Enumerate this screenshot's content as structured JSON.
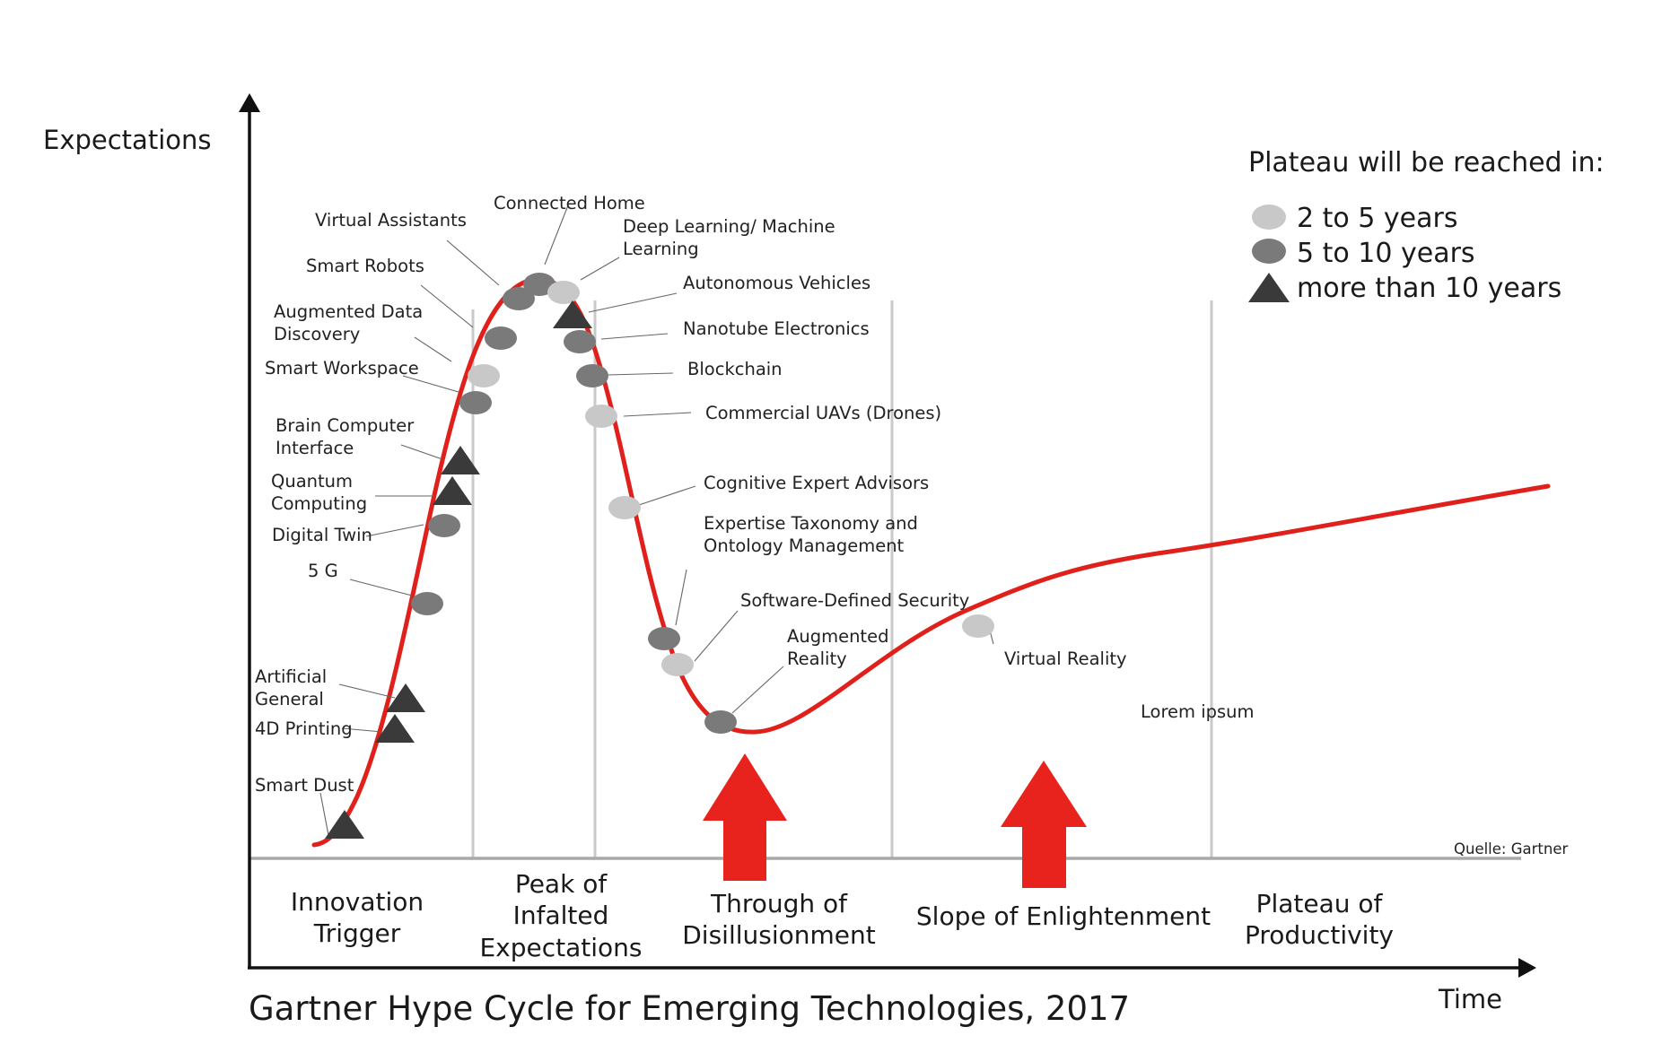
{
  "axis": {
    "y_label": "Expectations",
    "x_label": "Time"
  },
  "title": "Gartner Hype Cycle for Emerging Technologies, 2017",
  "source": "Quelle: Gartner",
  "legend": {
    "title": "Plateau will be reached in:",
    "items": [
      {
        "marker": "circle-light",
        "color": "#c8c8c8",
        "label": "2 to 5 years"
      },
      {
        "marker": "circle-dark",
        "color": "#7a7a7a",
        "label": "5 to 10 years"
      },
      {
        "marker": "triangle",
        "color": "#3a3a3a",
        "label": "more than 10 years"
      }
    ]
  },
  "phases": [
    {
      "lines": [
        "Innovation",
        "Trigger"
      ]
    },
    {
      "lines": [
        "Peak of",
        "Infalted",
        "Expectations"
      ]
    },
    {
      "lines": [
        "Through of",
        "Disillusionment"
      ]
    },
    {
      "lines": [
        "Slope of Enlightenment"
      ]
    },
    {
      "lines": [
        "Plateau of",
        "Productivity"
      ]
    }
  ],
  "technologies": {
    "virtual_assistants": "Virtual Assistants",
    "connected_home": "Connected Home",
    "deep_learning_1": "Deep Learning/ Machine",
    "deep_learning_2": "Learning",
    "smart_robots": "Smart Robots",
    "autonomous_vehicles": "Autonomous Vehicles",
    "augmented_data_1": "Augmented Data",
    "augmented_data_2": "Discovery",
    "nanotube": "Nanotube Electronics",
    "smart_workspace": "Smart Workspace",
    "blockchain": "Blockchain",
    "commercial_uavs": "Commercial UAVs (Drones)",
    "bci_1": "Brain Computer",
    "bci_2": "Interface",
    "quantum_1": "Quantum",
    "quantum_2": "Computing",
    "cognitive": "Cognitive Expert Advisors",
    "digital_twin": "Digital Twin",
    "expertise_1": "Expertise Taxonomy and",
    "expertise_2": "Ontology Management",
    "five_g": "5 G",
    "sds": "Software-Defined Security",
    "ar_1": "Augmented",
    "ar_2": "Reality",
    "vr": "Virtual Reality",
    "agi_1": "Artificial",
    "agi_2": "General",
    "printing_4d": "4D Printing",
    "smart_dust": "Smart Dust",
    "lorem": "Lorem ipsum"
  },
  "colors": {
    "curve": "#e0201a",
    "arrow": "#e8231d",
    "axis": "#111111",
    "baseline": "#a9a9a9",
    "phase_divider": "#c9c9c9"
  }
}
